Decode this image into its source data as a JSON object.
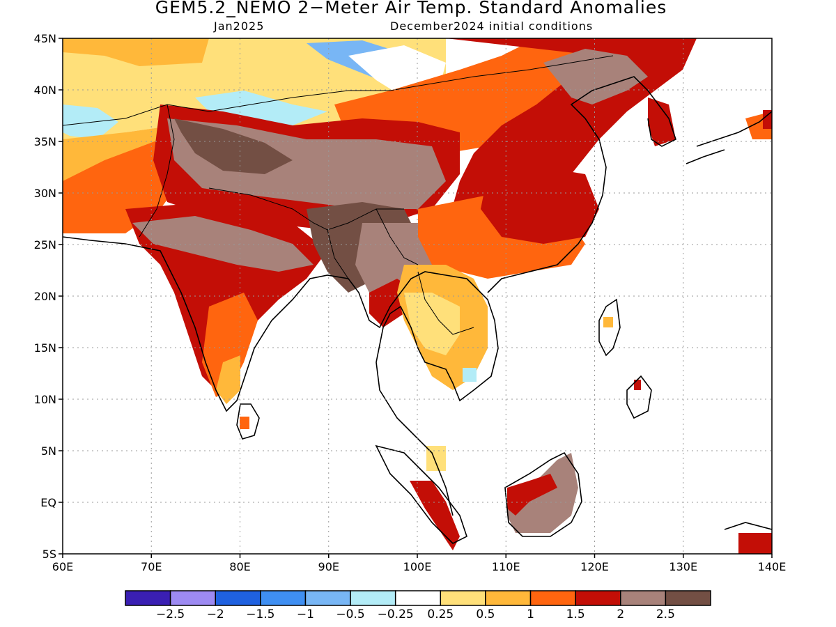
{
  "title": "GEM5.2_NEMO 2−Meter Air Temp. Standard Anomalies",
  "subtitle_left": "Jan2025",
  "subtitle_right": "December2024 initial conditions",
  "map": {
    "lon_range": [
      60,
      140
    ],
    "lat_range": [
      -5,
      45
    ],
    "lat_ticks": [
      "45N",
      "40N",
      "35N",
      "30N",
      "25N",
      "20N",
      "15N",
      "10N",
      "5N",
      "EQ",
      "5S"
    ],
    "lon_ticks": [
      "60E",
      "70E",
      "80E",
      "90E",
      "100E",
      "110E",
      "120E",
      "130E",
      "140E"
    ],
    "grid": "dotted"
  },
  "colorbar": {
    "colors": [
      "#3a1fb3",
      "#9d8af2",
      "#1f61e0",
      "#3f8ff2",
      "#78b6f5",
      "#b3ecf7",
      "#ffffff",
      "#ffe07a",
      "#ffb83a",
      "#ff650f",
      "#c30e06",
      "#a8827a",
      "#734f44"
    ],
    "labels": [
      "−2.5",
      "−2",
      "−1.5",
      "−1",
      "−0.5",
      "−0.25",
      "0.25",
      "0.5",
      "1",
      "1.5",
      "2",
      "2.5"
    ]
  },
  "regions": [
    {
      "name": "central-asia-warm",
      "category": "0.5"
    },
    {
      "name": "kazakhstan-warm",
      "category": "1"
    },
    {
      "name": "mongolia-northwest-cool",
      "category": "-0.5"
    },
    {
      "name": "tian-shan-cool",
      "category": "-0.25"
    },
    {
      "name": "iran-afghanistan-warm",
      "category": "1"
    },
    {
      "name": "pakistan-hot",
      "category": "1.5"
    },
    {
      "name": "india-hot",
      "category": "2"
    },
    {
      "name": "south-india-warm",
      "category": "1"
    },
    {
      "name": "tibet-very-hot",
      "category": "2.5"
    },
    {
      "name": "tibet-hot",
      "category": "2"
    },
    {
      "name": "china-hot",
      "category": "2"
    },
    {
      "name": "south-china-warm",
      "category": "1.5"
    },
    {
      "name": "indochina-warm",
      "category": "0.5"
    },
    {
      "name": "myanmar-hot",
      "category": "2.5"
    },
    {
      "name": "borneo-hot",
      "category": "2.5"
    },
    {
      "name": "sumatra-hot",
      "category": "2"
    },
    {
      "name": "korea-hot",
      "category": "2"
    }
  ]
}
